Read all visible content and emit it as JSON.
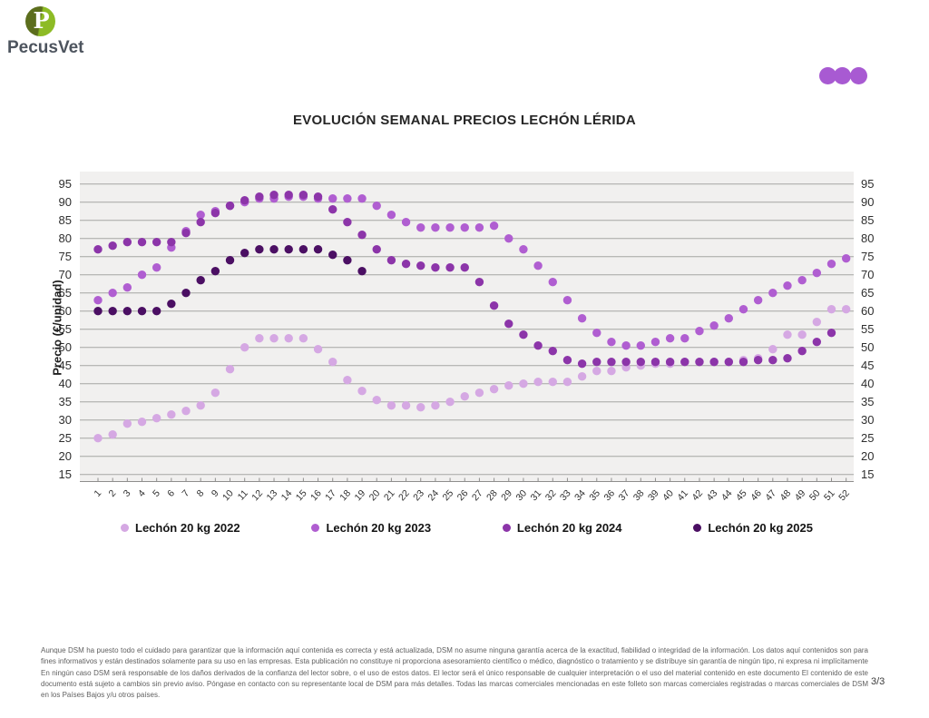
{
  "header": {
    "logo_text": "PecusVet",
    "logo_letter": "P",
    "dots_color": "#a85ad2"
  },
  "title": "EVOLUCIÓN SEMANAL PRECIOS LECHÓN LÉRIDA",
  "chart_data": {
    "type": "scatter",
    "title": "EVOLUCIÓN SEMANAL PRECIOS LECHÓN LÉRIDA",
    "xlabel": "",
    "ylabel": "Precio (€/unidad)",
    "ylim": [
      15,
      95
    ],
    "y_tick_step": 5,
    "grid": "horizontal",
    "legend_position": "bottom",
    "plot_background": "#f1f0ef",
    "gridline_color": "#a6a5a4",
    "x": [
      1,
      2,
      3,
      4,
      5,
      6,
      7,
      8,
      9,
      10,
      11,
      12,
      13,
      14,
      15,
      16,
      17,
      18,
      19,
      20,
      21,
      22,
      23,
      24,
      25,
      26,
      27,
      28,
      29,
      30,
      31,
      32,
      33,
      34,
      35,
      36,
      37,
      38,
      39,
      40,
      41,
      42,
      43,
      44,
      45,
      46,
      47,
      48,
      49,
      50,
      51,
      52
    ],
    "series": [
      {
        "name": "Lechón 20 kg 2022",
        "color": "#d5a8e3",
        "values": [
          25,
          26,
          29,
          29.5,
          30.5,
          31.5,
          32.5,
          34,
          37.5,
          44,
          50,
          52.5,
          52.5,
          52.5,
          52.5,
          49.5,
          46,
          41,
          38,
          35.5,
          34,
          34,
          33.5,
          34,
          35,
          36.5,
          37.5,
          38.5,
          39.5,
          40,
          40.5,
          40.5,
          40.5,
          42,
          43.5,
          43.5,
          44.5,
          45,
          45.5,
          45.5,
          46,
          46,
          46,
          46,
          46.5,
          47,
          49.5,
          53.5,
          53.5,
          57,
          60.5,
          60.5
        ]
      },
      {
        "name": "Lechón 20 kg 2023",
        "color": "#b05ed1",
        "values": [
          63,
          65,
          66.5,
          70,
          72,
          77.5,
          82,
          86.5,
          87.5,
          89,
          90,
          91,
          91,
          91.5,
          91.5,
          91,
          91,
          91,
          91,
          89,
          86.5,
          84.5,
          83,
          83,
          83,
          83,
          83,
          83.5,
          80,
          77,
          72.5,
          68,
          63,
          58,
          54,
          51.5,
          50.5,
          50.5,
          51.5,
          52.5,
          52.5,
          54.5,
          56,
          58,
          60.5,
          63,
          65,
          67,
          68.5,
          70.5,
          73,
          74.5
        ]
      },
      {
        "name": "Lechón 20 kg 2024",
        "color": "#8c35a9",
        "values": [
          77,
          78,
          79,
          79,
          79,
          79,
          81.5,
          84.5,
          87,
          89,
          90.5,
          91.5,
          92,
          92,
          92,
          91.5,
          88,
          84.5,
          81,
          77,
          74,
          73,
          72.5,
          72,
          72,
          72,
          68,
          61.5,
          56.5,
          53.5,
          50.5,
          49,
          46.5,
          45.5,
          46,
          46,
          46,
          46,
          46,
          46,
          46,
          46,
          46,
          46,
          46,
          46.5,
          46.5,
          47,
          49,
          51.5,
          54,
          null
        ]
      },
      {
        "name": "Lechón 20 kg 2025",
        "color": "#4b0f63",
        "values": [
          60,
          60,
          60,
          60,
          60,
          62,
          65,
          68.5,
          71,
          74,
          76,
          77,
          77,
          77,
          77,
          77,
          75.5,
          74,
          71,
          null,
          null,
          null,
          null,
          null,
          null,
          null,
          null,
          null,
          null,
          null,
          null,
          null,
          null,
          null,
          null,
          null,
          null,
          null,
          null,
          null,
          null,
          null,
          null,
          null,
          null,
          null,
          null,
          null,
          null,
          null,
          null,
          null
        ]
      }
    ]
  },
  "footer": {
    "disclaimer": "Aunque DSM ha puesto todo el cuidado para garantizar que la información aquí contenida es correcta y está actualizada, DSM no asume ninguna garantía acerca de la exactitud, fiabilidad o integridad de la información. Los datos aquí contenidos son para fines informativos y están destinados solamente para su uso en las empresas. Esta publicación no constituye ni proporciona asesoramiento científico o médico, diagnóstico o tratamiento y se distribuye sin garantía de ningún tipo, ni expresa ni implícitamente En ningún caso DSM será responsable de los daños derivados de la confianza del lector sobre, o el uso de estos datos. El lector será el único responsable de cualquier interpretación o el uso del material contenido en este documento El contenido de este documento está sujeto a cambios sin previo aviso. Póngase en contacto con su representante local de DSM para más detalles. Todas las marcas comerciales mencionadas en este folleto son marcas comerciales registradas o marcas comerciales de DSM en los Países Bajos y/u otros países.",
    "page_indicator": "3/3"
  }
}
